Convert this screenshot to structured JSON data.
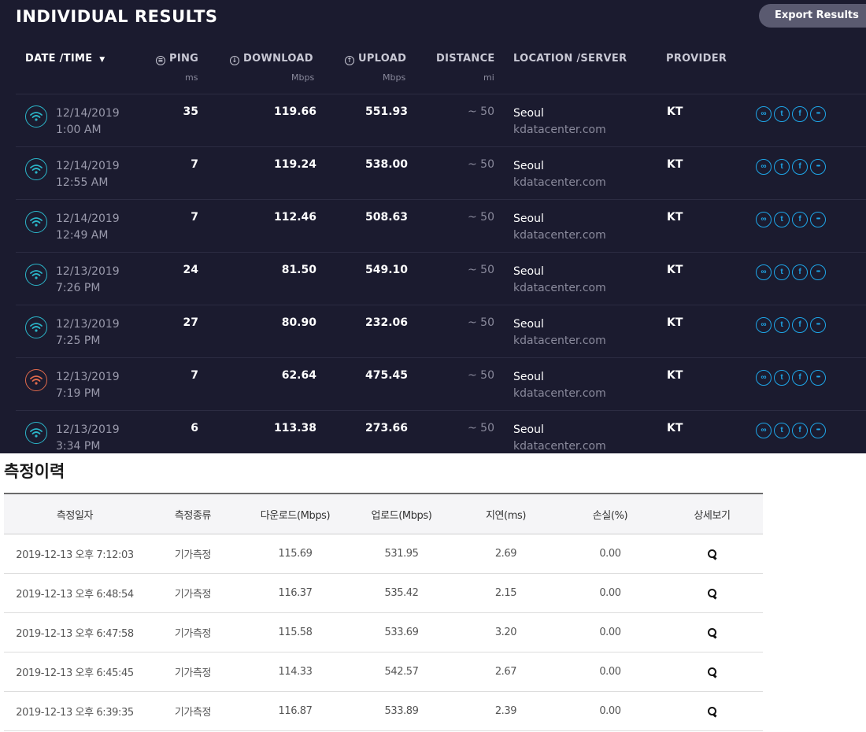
{
  "speedtest": {
    "title": "INDIVIDUAL RESULTS",
    "export_label": "Export Results",
    "headers": {
      "datetime": "DATE /TIME",
      "ping": "PING",
      "ping_unit": "ms",
      "download": "DOWNLOAD",
      "download_unit": "Mbps",
      "upload": "UPLOAD",
      "upload_unit": "Mbps",
      "distance": "DISTANCE",
      "distance_unit": "mi",
      "location": "LOCATION /SERVER",
      "provider": "PROVIDER"
    },
    "rows": [
      {
        "date": "12/14/2019",
        "time": "1:00 AM",
        "ping": "35",
        "download": "119.66",
        "upload": "551.93",
        "distance": "~ 50",
        "location": "Seoul",
        "server": "kdatacenter.com",
        "provider": "KT",
        "status": "good"
      },
      {
        "date": "12/14/2019",
        "time": "12:55 AM",
        "ping": "7",
        "download": "119.24",
        "upload": "538.00",
        "distance": "~ 50",
        "location": "Seoul",
        "server": "kdatacenter.com",
        "provider": "KT",
        "status": "good"
      },
      {
        "date": "12/14/2019",
        "time": "12:49 AM",
        "ping": "7",
        "download": "112.46",
        "upload": "508.63",
        "distance": "~ 50",
        "location": "Seoul",
        "server": "kdatacenter.com",
        "provider": "KT",
        "status": "good"
      },
      {
        "date": "12/13/2019",
        "time": "7:26 PM",
        "ping": "24",
        "download": "81.50",
        "upload": "549.10",
        "distance": "~ 50",
        "location": "Seoul",
        "server": "kdatacenter.com",
        "provider": "KT",
        "status": "good"
      },
      {
        "date": "12/13/2019",
        "time": "7:25 PM",
        "ping": "27",
        "download": "80.90",
        "upload": "232.06",
        "distance": "~ 50",
        "location": "Seoul",
        "server": "kdatacenter.com",
        "provider": "KT",
        "status": "good"
      },
      {
        "date": "12/13/2019",
        "time": "7:19 PM",
        "ping": "7",
        "download": "62.64",
        "upload": "475.45",
        "distance": "~ 50",
        "location": "Seoul",
        "server": "kdatacenter.com",
        "provider": "KT",
        "status": "bad"
      },
      {
        "date": "12/13/2019",
        "time": "3:34 PM",
        "ping": "6",
        "download": "113.38",
        "upload": "273.66",
        "distance": "~ 50",
        "location": "Seoul",
        "server": "kdatacenter.com",
        "provider": "KT",
        "status": "good"
      }
    ],
    "action_icons": [
      "link-icon",
      "twitter-icon",
      "facebook-icon",
      "more-icon"
    ],
    "colors": {
      "background": "#1b1b2f",
      "good": "#2bb5c8",
      "bad": "#e06a4c",
      "action": "#1ea6e8"
    }
  },
  "history": {
    "title": "측정이력",
    "headers": [
      "측정일자",
      "측정종류",
      "다운로드(Mbps)",
      "업로드(Mbps)",
      "지연(ms)",
      "손실(%)",
      "상세보기"
    ],
    "rows": [
      [
        "2019-12-13 오후 7:12:03",
        "기가측정",
        "115.69",
        "531.95",
        "2.69",
        "0.00"
      ],
      [
        "2019-12-13 오후 6:48:54",
        "기가측정",
        "116.37",
        "535.42",
        "2.15",
        "0.00"
      ],
      [
        "2019-12-13 오후 6:47:58",
        "기가측정",
        "115.58",
        "533.69",
        "3.20",
        "0.00"
      ],
      [
        "2019-12-13 오후 6:45:45",
        "기가측정",
        "114.33",
        "542.57",
        "2.67",
        "0.00"
      ],
      [
        "2019-12-13 오후 6:39:35",
        "기가측정",
        "116.87",
        "533.89",
        "2.39",
        "0.00"
      ]
    ]
  }
}
